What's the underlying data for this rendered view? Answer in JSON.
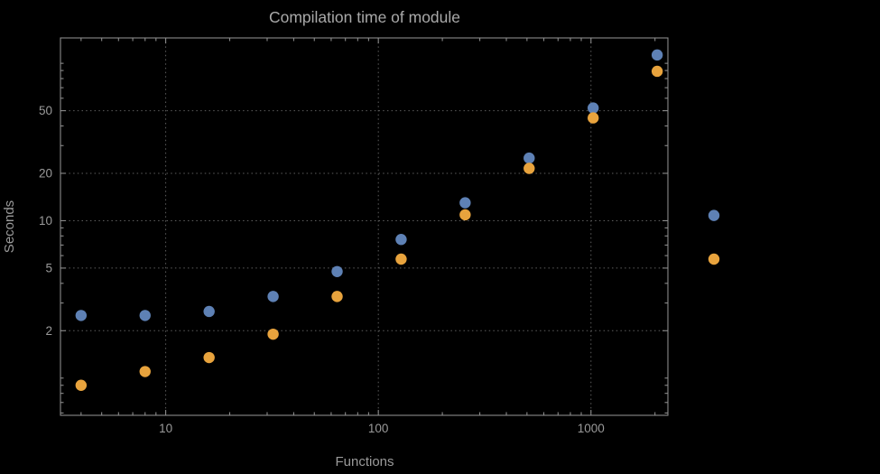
{
  "chart_data": {
    "type": "scatter",
    "title": "Compilation time of module",
    "xlabel": "Functions",
    "ylabel": "Seconds",
    "x_scale": "log",
    "y_scale": "log",
    "xlim": [
      3.2,
      2300
    ],
    "ylim": [
      0.58,
      145
    ],
    "x_ticks": [
      10,
      100,
      1000
    ],
    "y_ticks": [
      2,
      5,
      10,
      20,
      50
    ],
    "grid": true,
    "x": [
      4,
      8,
      16,
      32,
      64,
      128,
      256,
      512,
      1024,
      2048
    ],
    "series": [
      {
        "name": "series-blue",
        "color": "#5e81b5",
        "values": [
          2.5,
          2.5,
          2.65,
          3.3,
          4.75,
          7.6,
          13.0,
          25.0,
          52.0,
          113.0
        ]
      },
      {
        "name": "series-orange",
        "color": "#e8a33d",
        "values": [
          0.9,
          1.1,
          1.35,
          1.9,
          3.3,
          5.7,
          10.9,
          21.5,
          45.0,
          89.0
        ]
      }
    ],
    "legend_position": "right",
    "legend_marker_values": [
      10.8,
      5.7
    ]
  },
  "colors": {
    "background": "#000000",
    "frame": "#8b8b8b",
    "grid": "#5e5e5e",
    "text": "#9a9a9a"
  }
}
